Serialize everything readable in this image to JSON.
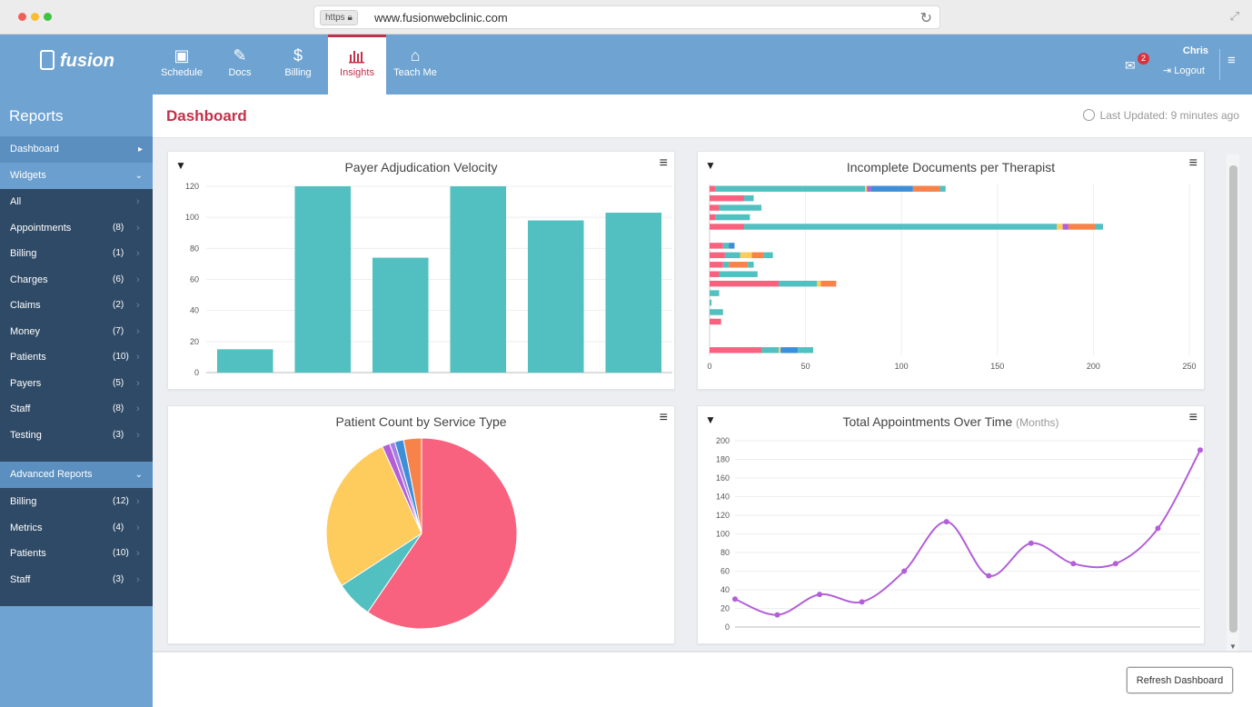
{
  "browser": {
    "https": "https",
    "url": "www.fusionwebclinic.com"
  },
  "app": {
    "logo": "fusion"
  },
  "nav": {
    "tabs": [
      {
        "label": "Schedule",
        "icon": "calendar-icon"
      },
      {
        "label": "Docs",
        "icon": "pencil-icon"
      },
      {
        "label": "Billing",
        "icon": "dollar-icon"
      },
      {
        "label": "Insights",
        "icon": "bar-chart-icon",
        "active": true
      },
      {
        "label": "Teach Me",
        "icon": "graduation-cap-icon"
      }
    ],
    "mail_count": "2",
    "user": "Chris",
    "logout": "Logout"
  },
  "sidebar": {
    "title": "Reports",
    "dashboard": "Dashboard",
    "widgets": "Widgets",
    "widget_items": [
      {
        "label": "All",
        "count": ""
      },
      {
        "label": "Appointments",
        "count": "(8)"
      },
      {
        "label": "Billing",
        "count": "(1)"
      },
      {
        "label": "Charges",
        "count": "(6)"
      },
      {
        "label": "Claims",
        "count": "(2)"
      },
      {
        "label": "Money",
        "count": "(7)"
      },
      {
        "label": "Patients",
        "count": "(10)"
      },
      {
        "label": "Payers",
        "count": "(5)"
      },
      {
        "label": "Staff",
        "count": "(8)"
      },
      {
        "label": "Testing",
        "count": "(3)"
      }
    ],
    "advanced": "Advanced Reports",
    "advanced_items": [
      {
        "label": "Billing",
        "count": "(12)"
      },
      {
        "label": "Metrics",
        "count": "(4)"
      },
      {
        "label": "Patients",
        "count": "(10)"
      },
      {
        "label": "Staff",
        "count": "(3)"
      }
    ]
  },
  "header": {
    "title": "Dashboard",
    "last_updated": "Last Updated: 9 minutes ago"
  },
  "footer": {
    "refresh": "Refresh Dashboard"
  },
  "colors": {
    "teal": "#52bfc1",
    "pink": "#f8627f",
    "yellow": "#fecb5d",
    "blue": "#3f8fd8",
    "orange": "#f7834a",
    "purple": "#b35fd8",
    "lavender": "#a77fe0"
  },
  "chart_data": [
    {
      "type": "bar",
      "title": "Payer Adjudication Velocity",
      "categories": [
        "",
        "",
        "",
        "",
        "",
        ""
      ],
      "values": [
        15,
        120,
        74,
        120,
        98,
        103
      ],
      "ylim": [
        0,
        120
      ],
      "yticks": [
        0,
        20,
        40,
        60,
        80,
        100,
        120
      ]
    },
    {
      "type": "bar",
      "orientation": "horizontal",
      "stacked": true,
      "title": "Incomplete Documents per Therapist",
      "xlim": [
        0,
        250
      ],
      "xticks": [
        0,
        50,
        100,
        150,
        200,
        250
      ],
      "series": [
        {
          "name": "pink",
          "color": "#f8627f",
          "values": [
            3,
            18,
            5,
            3,
            18,
            0,
            7,
            8,
            7,
            5,
            36,
            0,
            0,
            0,
            6,
            0,
            0,
            27
          ]
        },
        {
          "name": "teal",
          "color": "#52bfc1",
          "values": [
            78,
            5,
            22,
            18,
            163,
            0,
            3,
            8,
            3,
            20,
            20,
            5,
            1,
            7,
            0,
            0,
            0,
            9
          ]
        },
        {
          "name": "yellow",
          "color": "#fecb5d",
          "values": [
            1,
            0,
            0,
            0,
            3,
            0,
            0,
            6,
            0,
            0,
            2,
            0,
            0,
            0,
            0,
            0,
            0,
            1
          ]
        },
        {
          "name": "purple",
          "color": "#b35fd8",
          "values": [
            2,
            0,
            0,
            0,
            3,
            0,
            0,
            0,
            0,
            0,
            0,
            0,
            0,
            0,
            0,
            0,
            0,
            0
          ]
        },
        {
          "name": "blue",
          "color": "#3f8fd8",
          "values": [
            22,
            0,
            0,
            0,
            0,
            0,
            3,
            0,
            0,
            0,
            0,
            0,
            0,
            0,
            0,
            0,
            0,
            9
          ]
        },
        {
          "name": "orange",
          "color": "#f7834a",
          "values": [
            14,
            0,
            0,
            0,
            14,
            0,
            0,
            6,
            10,
            0,
            8,
            0,
            0,
            0,
            0,
            0,
            0,
            0
          ]
        },
        {
          "name": "teal-2",
          "color": "#52bfc1",
          "values": [
            3,
            0,
            0,
            0,
            4,
            0,
            0,
            5,
            3,
            0,
            0,
            0,
            0,
            0,
            0,
            0,
            0,
            8
          ]
        }
      ]
    },
    {
      "type": "pie",
      "title": "Patient Count by Service Type",
      "slices": [
        {
          "label": "Pink",
          "value": 59.0,
          "color": "#f8627f"
        },
        {
          "label": "Teal",
          "value": 6.2,
          "color": "#52bfc1"
        },
        {
          "label": "Yellow",
          "value": 27.2,
          "color": "#fecb5d"
        },
        {
          "label": "Purple",
          "value": 1.3,
          "color": "#b35fd8"
        },
        {
          "label": "Lavender",
          "value": 0.9,
          "color": "#a77fe0"
        },
        {
          "label": "Blue",
          "value": 1.5,
          "color": "#3f8fd8"
        },
        {
          "label": "Orange",
          "value": 3.0,
          "color": "#f7834a"
        }
      ]
    },
    {
      "type": "line",
      "title": "Total Appointments Over Time",
      "subtitle": "(Months)",
      "x": [
        1,
        2,
        3,
        4,
        5,
        6,
        7,
        8,
        9,
        10,
        11,
        12
      ],
      "values": [
        30,
        13,
        35,
        27,
        60,
        113,
        55,
        90,
        68,
        68,
        106,
        190
      ],
      "ylim": [
        0,
        200
      ],
      "yticks": [
        0,
        20,
        40,
        60,
        80,
        100,
        120,
        140,
        160,
        180,
        200
      ],
      "color": "#b35fd8"
    }
  ]
}
